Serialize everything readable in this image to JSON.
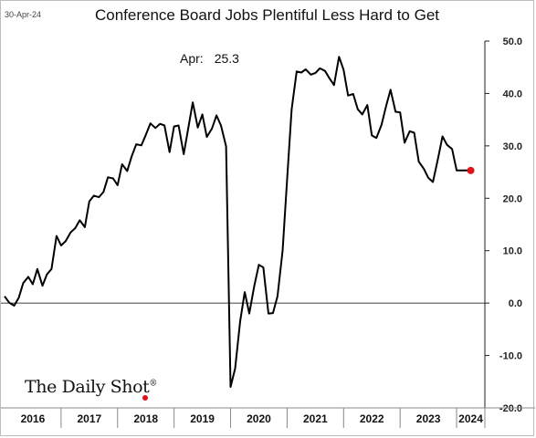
{
  "date_label": "30-Apr-24",
  "annotation": {
    "label": "Apr:",
    "value": "25.3"
  },
  "brand": {
    "name": "The Daily Shot",
    "mark": "®"
  },
  "colors": {
    "line": "#000000",
    "marker": "#e0121a"
  },
  "chart_data": {
    "type": "line",
    "title": "Conference Board Jobs Plentiful Less Hard to Get",
    "xlabel": "",
    "ylabel": "",
    "ylim": [
      -20,
      50
    ],
    "yticks": [
      50,
      40,
      30,
      20,
      10,
      0,
      -10,
      -20
    ],
    "ytick_labels": [
      "50.0",
      "40.0",
      "30.0",
      "20.0",
      "10.0",
      "0.0",
      "-10.0",
      "-20.0"
    ],
    "x_years": [
      2016,
      2017,
      2018,
      2019,
      2020,
      2021,
      2022,
      2023,
      2024
    ],
    "x_start": 2016.0,
    "x_end": 2024.5,
    "zero_line": true,
    "grid": false,
    "series": [
      {
        "x": [
          2016.0,
          2016.08,
          2016.17,
          2016.25,
          2016.33,
          2016.42,
          2016.5,
          2016.58,
          2016.67,
          2016.75,
          2016.83,
          2016.92,
          2017.0,
          2017.08,
          2017.17,
          2017.25,
          2017.33,
          2017.42,
          2017.5,
          2017.58,
          2017.67,
          2017.75,
          2017.83,
          2017.92,
          2018.0,
          2018.08,
          2018.17,
          2018.25,
          2018.33,
          2018.42,
          2018.5,
          2018.58,
          2018.67,
          2018.75,
          2018.83,
          2018.92,
          2019.0,
          2019.08,
          2019.17,
          2019.25,
          2019.33,
          2019.42,
          2019.5,
          2019.58,
          2019.67,
          2019.75,
          2019.83,
          2019.92,
          2020.0,
          2020.08,
          2020.17,
          2020.25,
          2020.33,
          2020.42,
          2020.5,
          2020.58,
          2020.67,
          2020.75,
          2020.83,
          2020.92,
          2021.0,
          2021.08,
          2021.17,
          2021.25,
          2021.33,
          2021.42,
          2021.5,
          2021.58,
          2021.67,
          2021.75,
          2021.83,
          2021.92,
          2022.0,
          2022.08,
          2022.17,
          2022.25,
          2022.33,
          2022.42,
          2022.5,
          2022.58,
          2022.67,
          2022.75,
          2022.83,
          2022.92,
          2023.0,
          2023.08,
          2023.17,
          2023.25,
          2023.33,
          2023.42,
          2023.5,
          2023.58,
          2023.67,
          2023.75,
          2023.83,
          2023.92,
          2024.0,
          2024.08,
          2024.17,
          2024.25
        ],
        "y": [
          1.3,
          0.1,
          -0.5,
          1.0,
          3.8,
          5.0,
          3.6,
          6.5,
          3.3,
          5.5,
          6.5,
          12.8,
          11.0,
          11.8,
          13.5,
          14.3,
          15.8,
          14.5,
          19.4,
          20.5,
          20.2,
          21.2,
          24.0,
          23.8,
          22.5,
          26.5,
          25.2,
          28.0,
          30.3,
          30.1,
          32.1,
          34.3,
          33.4,
          34.2,
          33.9,
          28.8,
          33.7,
          33.9,
          28.4,
          33.3,
          38.3,
          33.5,
          36.0,
          31.7,
          33.3,
          35.8,
          33.9,
          29.9,
          -16.0,
          -12.5,
          -3.5,
          2.1,
          -2.0,
          3.3,
          7.3,
          6.8,
          -2.0,
          -1.9,
          1.3,
          10.0,
          23.5,
          37.0,
          44.2,
          44.0,
          44.6,
          43.6,
          43.9,
          44.8,
          44.3,
          42.9,
          41.6,
          47.0,
          44.5,
          39.6,
          39.9,
          37.0,
          36.0,
          37.8,
          32.0,
          31.5,
          34.0,
          37.5,
          40.7,
          36.5,
          36.4,
          30.6,
          32.8,
          32.5,
          27.0,
          25.6,
          23.9,
          23.1,
          27.5,
          31.8,
          30.2,
          29.4,
          25.3,
          25.3,
          25.3,
          25.3
        ]
      }
    ],
    "last_point": {
      "x": 2024.25,
      "y": 25.3
    }
  }
}
